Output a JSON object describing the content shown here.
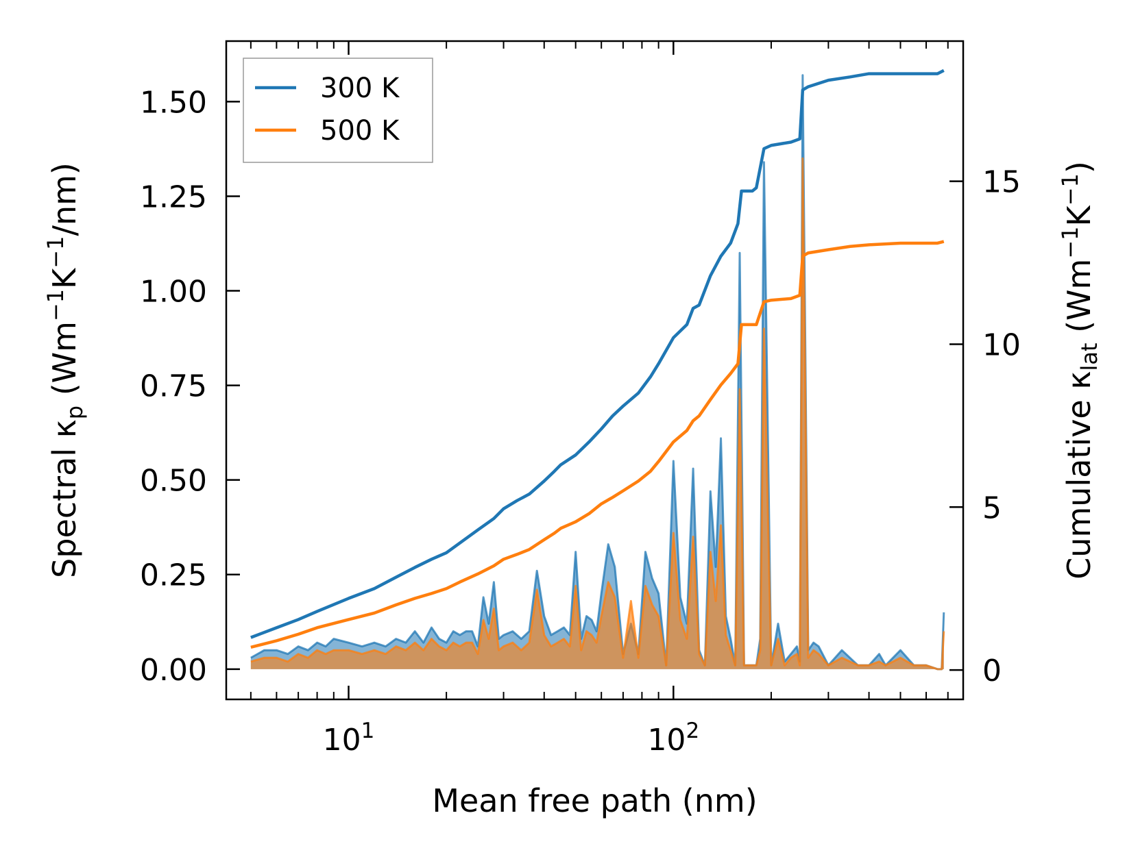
{
  "chart_data": {
    "type": "line",
    "xlabel": "Mean free path (nm)",
    "ylabel": {
      "main": "Spectral κ",
      "sub": "p",
      "unit_open": " (Wm",
      "e1": "−1",
      "unit_mid": "K",
      "e2": "−1",
      "unit_close": "/nm)"
    },
    "y2label": {
      "main": "Cumulative κ",
      "sub": "lat",
      "unit_open": " (Wm",
      "e1": "−1",
      "unit_mid": "K",
      "e2": "−1",
      "unit_close": ")"
    },
    "xscale": "log",
    "xlim": [
      4.2,
      780
    ],
    "ylim": [
      -0.08,
      1.66
    ],
    "y2lim": [
      -0.9,
      19.3
    ],
    "xticks": [
      {
        "value": 10,
        "base": "10",
        "exp": "1"
      },
      {
        "value": 100,
        "base": "10",
        "exp": "2"
      }
    ],
    "yticks": [
      {
        "value": 0.0,
        "label": "0.00"
      },
      {
        "value": 0.25,
        "label": "0.25"
      },
      {
        "value": 0.5,
        "label": "0.50"
      },
      {
        "value": 0.75,
        "label": "0.75"
      },
      {
        "value": 1.0,
        "label": "1.00"
      },
      {
        "value": 1.25,
        "label": "1.25"
      },
      {
        "value": 1.5,
        "label": "1.50"
      }
    ],
    "y2ticks": [
      {
        "value": 0,
        "label": "0"
      },
      {
        "value": 5,
        "label": "5"
      },
      {
        "value": 10,
        "label": "10"
      },
      {
        "value": 15,
        "label": "15"
      }
    ],
    "legend_position": "top-left",
    "series": [
      {
        "name": "300 K",
        "color": "#1f77b4",
        "cumulative": {
          "x": [
            5,
            6,
            7,
            8,
            10,
            12,
            14,
            16,
            18,
            20,
            22,
            25,
            28,
            30,
            33,
            36,
            40,
            43,
            45,
            50,
            55,
            60,
            65,
            70,
            78,
            85,
            90,
            100,
            110,
            115,
            120,
            130,
            140,
            150,
            158,
            162,
            175,
            180,
            190,
            200,
            230,
            245,
            250,
            260,
            300,
            350,
            400,
            500,
            600,
            650,
            680
          ],
          "y": [
            1.0,
            1.3,
            1.55,
            1.8,
            2.2,
            2.5,
            2.85,
            3.15,
            3.4,
            3.6,
            3.9,
            4.3,
            4.65,
            4.95,
            5.2,
            5.4,
            5.8,
            6.1,
            6.3,
            6.6,
            7.0,
            7.4,
            7.8,
            8.1,
            8.5,
            9.0,
            9.4,
            10.2,
            10.6,
            11.1,
            11.2,
            12.1,
            12.7,
            13.1,
            13.7,
            14.7,
            14.7,
            14.8,
            16.0,
            16.1,
            16.2,
            16.3,
            17.8,
            17.9,
            18.1,
            18.2,
            18.3,
            18.3,
            18.3,
            18.3,
            18.4
          ]
        },
        "spectral": {
          "x": [
            5,
            5.5,
            6,
            6.5,
            7,
            7.5,
            8,
            8.5,
            9,
            10,
            11,
            12,
            13,
            14,
            15,
            16,
            17,
            18,
            19,
            20,
            21,
            22,
            23,
            24,
            25,
            26,
            27,
            28,
            29,
            30,
            32,
            34,
            36,
            38,
            40,
            42,
            44,
            46,
            48,
            50,
            52,
            54,
            56,
            58,
            60,
            63,
            66,
            70,
            74,
            78,
            82,
            86,
            90,
            95,
            100,
            105,
            110,
            115,
            120,
            125,
            130,
            135,
            140,
            145,
            150,
            155,
            160,
            165,
            170,
            175,
            180,
            185,
            190,
            200,
            210,
            220,
            230,
            240,
            245,
            250,
            260,
            270,
            280,
            300,
            330,
            370,
            400,
            430,
            450,
            500,
            550,
            600,
            650,
            670,
            680
          ],
          "y": [
            0.03,
            0.05,
            0.05,
            0.04,
            0.06,
            0.05,
            0.07,
            0.06,
            0.08,
            0.07,
            0.06,
            0.07,
            0.06,
            0.08,
            0.07,
            0.1,
            0.07,
            0.11,
            0.08,
            0.07,
            0.1,
            0.09,
            0.1,
            0.1,
            0.06,
            0.19,
            0.12,
            0.23,
            0.08,
            0.09,
            0.1,
            0.08,
            0.1,
            0.26,
            0.14,
            0.09,
            0.1,
            0.11,
            0.09,
            0.31,
            0.08,
            0.14,
            0.13,
            0.1,
            0.2,
            0.33,
            0.27,
            0.04,
            0.12,
            0.04,
            0.31,
            0.24,
            0.2,
            0.01,
            0.55,
            0.19,
            0.12,
            0.53,
            0.05,
            0.01,
            0.47,
            0.27,
            0.61,
            0.14,
            0.08,
            0.01,
            1.1,
            0.01,
            0.01,
            0.01,
            0.01,
            0.08,
            1.34,
            0.01,
            0.12,
            0.02,
            0.04,
            0.06,
            0.02,
            1.57,
            0.05,
            0.07,
            0.06,
            0.01,
            0.05,
            0.01,
            0.01,
            0.04,
            0.01,
            0.05,
            0.01,
            0.01,
            0.0,
            0.0,
            0.15
          ]
        }
      },
      {
        "name": "500 K",
        "color": "#ff7f0e",
        "cumulative": {
          "x": [
            5,
            6,
            7,
            8,
            10,
            12,
            14,
            16,
            18,
            20,
            22,
            25,
            28,
            30,
            33,
            36,
            40,
            43,
            45,
            50,
            55,
            60,
            65,
            70,
            78,
            85,
            90,
            100,
            110,
            115,
            120,
            130,
            140,
            150,
            158,
            162,
            175,
            180,
            190,
            200,
            230,
            245,
            250,
            260,
            300,
            350,
            400,
            500,
            600,
            650,
            680
          ],
          "y": [
            0.7,
            0.9,
            1.1,
            1.3,
            1.55,
            1.75,
            2.0,
            2.2,
            2.35,
            2.5,
            2.7,
            2.95,
            3.2,
            3.4,
            3.55,
            3.7,
            4.0,
            4.2,
            4.35,
            4.55,
            4.8,
            5.1,
            5.3,
            5.5,
            5.8,
            6.1,
            6.4,
            7.0,
            7.35,
            7.65,
            7.8,
            8.3,
            8.75,
            9.1,
            9.4,
            10.6,
            10.6,
            10.6,
            11.3,
            11.35,
            11.4,
            11.5,
            12.7,
            12.8,
            12.9,
            13.0,
            13.05,
            13.1,
            13.1,
            13.1,
            13.15
          ]
        },
        "spectral": {
          "x": [
            5,
            5.5,
            6,
            6.5,
            7,
            7.5,
            8,
            8.5,
            9,
            10,
            11,
            12,
            13,
            14,
            15,
            16,
            17,
            18,
            19,
            20,
            21,
            22,
            23,
            24,
            25,
            26,
            27,
            28,
            29,
            30,
            32,
            34,
            36,
            38,
            40,
            42,
            44,
            46,
            48,
            50,
            52,
            54,
            56,
            58,
            60,
            63,
            66,
            70,
            74,
            78,
            82,
            86,
            90,
            95,
            100,
            105,
            110,
            115,
            120,
            125,
            130,
            135,
            140,
            145,
            150,
            155,
            160,
            165,
            170,
            175,
            180,
            185,
            190,
            200,
            210,
            220,
            230,
            240,
            245,
            250,
            260,
            270,
            280,
            300,
            330,
            370,
            400,
            430,
            450,
            500,
            550,
            600,
            650,
            670,
            680
          ],
          "y": [
            0.02,
            0.03,
            0.03,
            0.02,
            0.04,
            0.03,
            0.05,
            0.04,
            0.05,
            0.05,
            0.04,
            0.05,
            0.04,
            0.06,
            0.05,
            0.07,
            0.05,
            0.08,
            0.06,
            0.05,
            0.07,
            0.06,
            0.07,
            0.07,
            0.04,
            0.13,
            0.08,
            0.16,
            0.05,
            0.06,
            0.07,
            0.05,
            0.07,
            0.21,
            0.09,
            0.06,
            0.07,
            0.08,
            0.06,
            0.22,
            0.05,
            0.1,
            0.09,
            0.07,
            0.14,
            0.23,
            0.19,
            0.03,
            0.18,
            0.03,
            0.22,
            0.17,
            0.14,
            0.01,
            0.36,
            0.13,
            0.08,
            0.35,
            0.04,
            0.01,
            0.31,
            0.18,
            0.38,
            0.09,
            0.05,
            0.01,
            0.74,
            0.01,
            0.01,
            0.01,
            0.01,
            0.05,
            0.9,
            0.01,
            0.08,
            0.01,
            0.03,
            0.04,
            0.01,
            1.35,
            0.03,
            0.05,
            0.04,
            0.01,
            0.03,
            0.01,
            0.01,
            0.02,
            0.01,
            0.03,
            0.01,
            0.01,
            0.0,
            0.0,
            0.1
          ]
        }
      }
    ]
  }
}
